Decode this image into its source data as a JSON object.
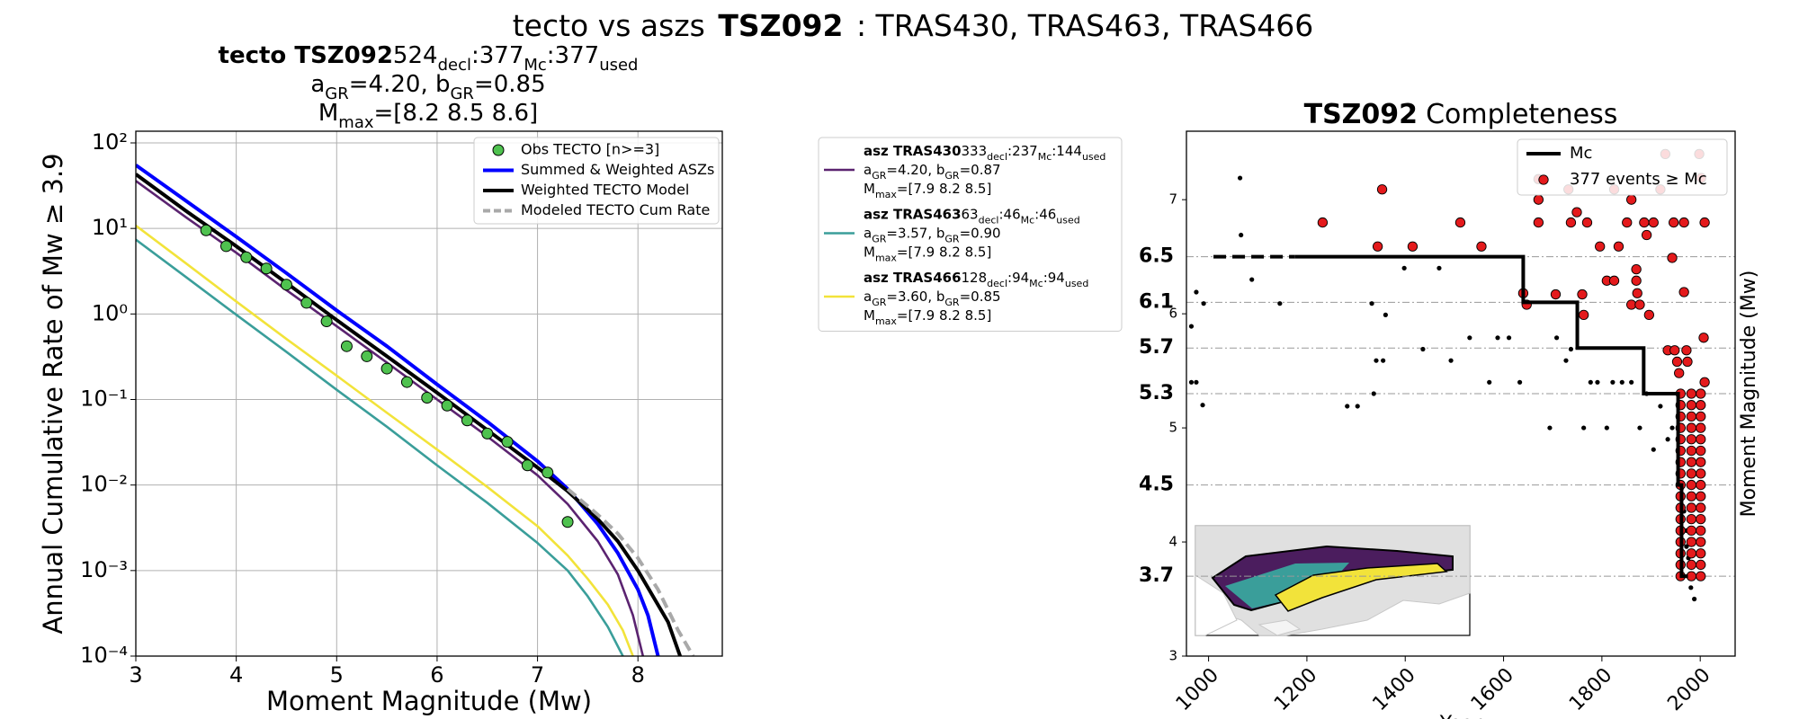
{
  "figure": {
    "title": [
      "tecto vs aszs",
      "TSZ092",
      ": TRAS430, TRAS463, TRAS466"
    ]
  },
  "chart_data": [
    {
      "type": "line",
      "subtitle_name": "tecto TSZ092",
      "subtitle": [
        [
          "524",
          "decl",
          ":377",
          "Mc",
          ":377",
          "used"
        ],
        [
          "a",
          "GR",
          "=4.20,  b",
          "GR",
          "=0.85"
        ],
        [
          "M",
          "max",
          "=[8.2 8.5 8.6]"
        ]
      ],
      "xlabel": "Moment Magnitude (Mw)",
      "ylabel": "Annual Cumulative Rate of Mw  ≥  3.9",
      "xlim": [
        3,
        8.84
      ],
      "ylim": [
        0.0001,
        137
      ],
      "yscale": "log",
      "grid": true,
      "legend": "upper right",
      "xticks": [
        3,
        4,
        5,
        6,
        7,
        8
      ],
      "yticks": [
        {
          "value": 0.0001,
          "label": "10⁻⁴"
        },
        {
          "value": 0.001,
          "label": "10⁻³"
        },
        {
          "value": 0.01,
          "label": "10⁻²"
        },
        {
          "value": 0.1,
          "label": "10⁻¹"
        },
        {
          "value": 1,
          "label": "10⁰"
        },
        {
          "value": 10,
          "label": "10¹"
        },
        {
          "value": 100,
          "label": "10²"
        }
      ],
      "series": [
        {
          "name": "Obs TECTO [n>=3]",
          "type": "scatter",
          "color": "#4fc24f",
          "x": [
            3.7,
            3.9,
            4.1,
            4.3,
            4.5,
            4.7,
            4.9,
            5.1,
            5.3,
            5.5,
            5.7,
            5.9,
            6.1,
            6.3,
            6.5,
            6.7,
            6.9,
            7.1,
            7.3
          ],
          "values": [
            9.5,
            6.2,
            4.6,
            3.4,
            2.2,
            1.35,
            0.82,
            0.42,
            0.32,
            0.23,
            0.16,
            0.105,
            0.085,
            0.057,
            0.04,
            0.032,
            0.017,
            0.014,
            0.0037
          ]
        },
        {
          "name": "Summed & Weighted ASZs",
          "color": "#0000ff",
          "x": [
            3,
            3.5,
            4,
            4.5,
            5,
            5.5,
            6,
            6.5,
            7,
            7.3,
            7.6,
            7.8,
            8.0,
            8.1,
            8.2
          ],
          "values": [
            55,
            21,
            8,
            3.0,
            1.1,
            0.42,
            0.15,
            0.055,
            0.019,
            0.009,
            0.0035,
            0.0016,
            0.0006,
            0.0003,
            0.0001
          ]
        },
        {
          "name": "Weighted TECTO Model",
          "color": "#000000",
          "x": [
            3,
            3.5,
            4,
            4.5,
            5,
            5.5,
            6,
            6.5,
            7,
            7.3,
            7.6,
            7.8,
            8.0,
            8.15,
            8.3,
            8.42
          ],
          "values": [
            43,
            16,
            6.2,
            2.3,
            0.85,
            0.32,
            0.12,
            0.044,
            0.016,
            0.0085,
            0.004,
            0.0022,
            0.001,
            0.0005,
            0.00025,
            0.0001
          ]
        },
        {
          "name": "Modeled TECTO Cum Rate",
          "color": "#a9a9a9",
          "dash": true,
          "x": [
            7.3,
            7.6,
            7.8,
            8.0,
            8.2,
            8.4,
            8.55
          ],
          "values": [
            0.009,
            0.0045,
            0.0027,
            0.0014,
            0.0006,
            0.0002,
            0.0001
          ]
        },
        {
          "name": "asz TRAS430",
          "color": "#5b2370",
          "details": [
            [
              "333",
              "decl",
              ":237",
              "Mc",
              ":144",
              "used"
            ],
            [
              "a",
              "GR",
              "=4.20,  b",
              "GR",
              "=0.87"
            ],
            [
              "M",
              "max",
              "=[7.9 8.2 8.5]"
            ]
          ],
          "x": [
            3,
            3.5,
            4,
            4.5,
            5,
            5.5,
            6,
            6.5,
            7,
            7.3,
            7.6,
            7.8,
            7.95,
            8.05
          ],
          "values": [
            36,
            13.5,
            5.2,
            1.9,
            0.72,
            0.27,
            0.1,
            0.037,
            0.013,
            0.006,
            0.0022,
            0.0009,
            0.0003,
            0.0001
          ]
        },
        {
          "name": "asz TRAS463",
          "color": "#3a9e9a",
          "details": [
            [
              "63",
              "decl",
              ":46",
              "Mc",
              ":46",
              "used"
            ],
            [
              "a",
              "GR",
              "=3.57,  b",
              "GR",
              "=0.90"
            ],
            [
              "M",
              "max",
              "=[7.9 8.2 8.5]"
            ]
          ],
          "x": [
            3,
            3.5,
            4,
            4.5,
            5,
            5.5,
            6,
            6.5,
            7,
            7.3,
            7.5,
            7.7,
            7.85
          ],
          "values": [
            7.4,
            2.7,
            0.98,
            0.36,
            0.13,
            0.048,
            0.017,
            0.0062,
            0.0021,
            0.001,
            0.0005,
            0.00022,
            0.0001
          ]
        },
        {
          "name": "asz TRAS466",
          "color": "#f2e33a",
          "details": [
            [
              "128",
              "decl",
              ":94",
              "Mc",
              ":94",
              "used"
            ],
            [
              "a",
              "GR",
              "=3.60,  b",
              "GR",
              "=0.85"
            ],
            [
              "M",
              "max",
              "=[7.9 8.2 8.5]"
            ]
          ],
          "x": [
            3,
            3.5,
            4,
            4.5,
            5,
            5.5,
            6,
            6.5,
            7,
            7.3,
            7.5,
            7.7,
            7.85,
            7.95
          ],
          "values": [
            10.8,
            3.9,
            1.4,
            0.51,
            0.19,
            0.07,
            0.026,
            0.0095,
            0.0033,
            0.0015,
            0.0008,
            0.0004,
            0.0002,
            0.0001
          ]
        }
      ]
    },
    {
      "type": "scatter",
      "title": [
        "TSZ092",
        "Completeness"
      ],
      "xlabel": "Year",
      "ylabel": "Moment Magnitude (Mw)",
      "xlim": [
        955,
        2071
      ],
      "ylim": [
        3,
        7.6
      ],
      "legend": "upper right",
      "xticks": [
        1000,
        1200,
        1400,
        1600,
        1800,
        2000
      ],
      "yticks": [
        3,
        4,
        5,
        6,
        7
      ],
      "mc_levels": [
        3.7,
        4.5,
        5.3,
        5.7,
        6.1,
        6.5
      ],
      "series": [
        {
          "name": "Mc",
          "type": "step",
          "color": "#000000",
          "x": [
            1010,
            1640,
            1750,
            1885,
            1955,
            1962
          ],
          "values": [
            6.5,
            6.1,
            5.7,
            5.3,
            4.5,
            3.7
          ],
          "x_end": 1975,
          "dash_end": 1175
        },
        {
          "name": "377 events  ≥  Mc",
          "color": "#e41a1c",
          "x": [
            1232,
            1344,
            1415,
            1353,
            1512,
            1555,
            1640,
            1647,
            1671,
            1671,
            1671,
            1706,
            1732,
            1737,
            1760,
            1763,
            1749,
            1770,
            1796,
            1810,
            1825,
            1825,
            1834,
            1851,
            1860,
            1860,
            1870,
            1870,
            1872,
            1877,
            1886,
            1891,
            1896,
            1905,
            1919,
            1929,
            1946,
            1943,
            1934,
            1948,
            1953,
            1957,
            1967,
            1967,
            1974,
            1972,
            1998,
            2002,
            2009,
            2007,
            2009,
            1960,
            1982,
            2001,
            1960,
            1982,
            2001,
            1960,
            1982,
            2001,
            1960,
            1982,
            2001,
            1960,
            1982,
            2001,
            1960,
            1982,
            2001,
            1960,
            1982,
            2001,
            1960,
            1982,
            2001,
            1960,
            1982,
            2001,
            1960,
            1982,
            2001,
            1960,
            1982,
            2001,
            1960,
            1982,
            2001,
            1960,
            1982,
            2001,
            1960,
            1982,
            2001,
            1960,
            1982,
            2001,
            1960,
            1982,
            2001,
            1960,
            1982,
            2001
          ],
          "values": [
            6.8,
            6.59,
            6.59,
            7.09,
            6.8,
            6.59,
            6.18,
            6.08,
            7.18,
            7.0,
            6.8,
            6.17,
            7.09,
            6.8,
            6.17,
            5.99,
            6.89,
            6.8,
            6.59,
            6.29,
            6.29,
            7.09,
            6.59,
            6.8,
            7.0,
            6.08,
            6.39,
            6.29,
            6.18,
            6.08,
            6.8,
            6.69,
            5.99,
            6.8,
            7.09,
            7.4,
            6.8,
            6.49,
            5.68,
            5.68,
            5.58,
            5.48,
            6.8,
            6.19,
            5.58,
            5.68,
            7.4,
            7.19,
            6.8,
            5.79,
            5.4,
            3.7,
            3.7,
            3.7,
            3.8,
            3.8,
            3.8,
            3.9,
            3.9,
            3.9,
            4.0,
            4.0,
            4.0,
            4.1,
            4.1,
            4.1,
            4.2,
            4.2,
            4.2,
            4.3,
            4.3,
            4.3,
            4.4,
            4.4,
            4.4,
            4.5,
            4.5,
            4.5,
            4.6,
            4.6,
            4.6,
            4.7,
            4.7,
            4.7,
            4.8,
            4.8,
            4.8,
            4.9,
            4.9,
            4.9,
            5.0,
            5.0,
            5.0,
            5.1,
            5.1,
            5.1,
            5.2,
            5.2,
            5.2,
            5.3,
            5.3,
            5.3
          ]
        },
        {
          "color": "#000000",
          "x": [
            965,
            965,
            975,
            975,
            988,
            990,
            1064,
            1066,
            1088,
            1145,
            1332,
            1360,
            1355,
            1341,
            1336,
            1282,
            1303,
            1398,
            1469,
            1436,
            1493,
            1531,
            1571,
            1588,
            1611,
            1633,
            1694,
            1708,
            1727,
            1737,
            1763,
            1777,
            1791,
            1810,
            1822,
            1841,
            1860,
            1877,
            1891,
            1905,
            1919,
            1934,
            1943,
            1962,
            1972,
            1981,
            1976,
            1981,
            1988,
            1967,
            1972
          ],
          "values": [
            5.89,
            5.4,
            6.19,
            5.4,
            5.2,
            6.09,
            7.19,
            6.69,
            6.3,
            6.09,
            6.09,
            5.99,
            5.59,
            5.59,
            5.3,
            5.19,
            5.19,
            6.4,
            6.4,
            5.69,
            5.59,
            5.79,
            5.4,
            5.79,
            5.79,
            5.4,
            5.0,
            5.79,
            5.59,
            5.69,
            5.0,
            5.4,
            5.4,
            5.0,
            5.4,
            5.4,
            5.4,
            5.0,
            5.3,
            4.81,
            5.19,
            4.9,
            5.0,
            4.47,
            4.1,
            4.1,
            3.86,
            3.6,
            3.5,
            4.27,
            3.96
          ]
        }
      ]
    }
  ]
}
